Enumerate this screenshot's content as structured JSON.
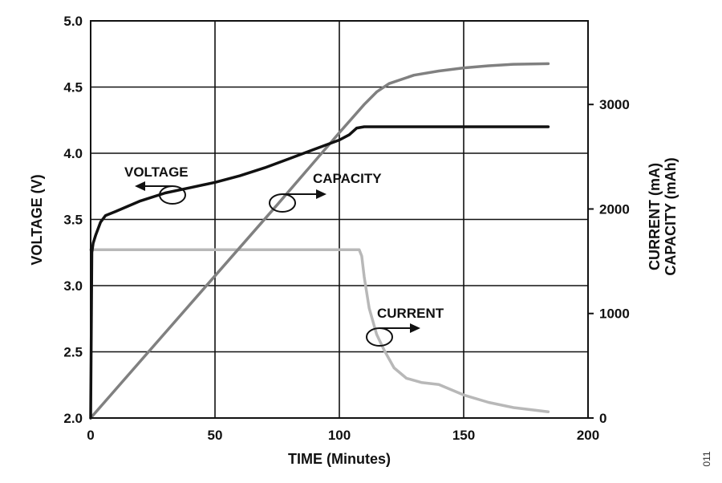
{
  "chart_data": {
    "type": "line",
    "xlabel": "TIME (Minutes)",
    "ylabel_left": "VOLTAGE (V)",
    "ylabel_right_lines": [
      "CURRENT (mA)",
      "CAPACITY (mAh)"
    ],
    "xlim": [
      0,
      200
    ],
    "ylim_left": [
      2.0,
      5.0
    ],
    "ylim_right": [
      0,
      3800
    ],
    "x_ticks": [
      "0",
      "50",
      "100",
      "150",
      "200"
    ],
    "y_left_ticks": [
      "2.0",
      "2.5",
      "3.0",
      "3.5",
      "4.0",
      "4.5",
      "5.0"
    ],
    "y_right_ticks": [
      "0",
      "1000",
      "2000",
      "3000"
    ],
    "grid": true,
    "series": [
      {
        "name": "VOLTAGE",
        "axis": "left",
        "color": "#111111",
        "x": [
          0,
          0.5,
          1,
          2,
          4,
          6,
          10,
          15,
          20,
          30,
          40,
          50,
          60,
          70,
          80,
          90,
          100,
          104,
          107,
          110,
          150,
          184
        ],
        "y": [
          2.0,
          3.25,
          3.32,
          3.38,
          3.48,
          3.53,
          3.56,
          3.6,
          3.64,
          3.7,
          3.74,
          3.78,
          3.83,
          3.89,
          3.96,
          4.03,
          4.1,
          4.14,
          4.19,
          4.2,
          4.2,
          4.2
        ]
      },
      {
        "name": "CAPACITY",
        "axis": "right",
        "color": "#808080",
        "x": [
          0,
          25,
          50,
          75,
          100,
          110,
          115,
          120,
          130,
          140,
          150,
          160,
          170,
          184
        ],
        "y": [
          0,
          680,
          1360,
          2040,
          2730,
          3000,
          3120,
          3200,
          3280,
          3320,
          3350,
          3370,
          3385,
          3390
        ]
      },
      {
        "name": "CURRENT",
        "axis": "right",
        "color": "#b8b8b8",
        "x": [
          0,
          25,
          50,
          75,
          100,
          108,
          109,
          110,
          112,
          115,
          118,
          122,
          127,
          133,
          140,
          145,
          150,
          160,
          170,
          184
        ],
        "y": [
          1610,
          1610,
          1610,
          1610,
          1610,
          1610,
          1550,
          1350,
          1050,
          800,
          650,
          480,
          380,
          340,
          320,
          270,
          220,
          150,
          100,
          60
        ]
      }
    ],
    "annotations": [
      {
        "text": "VOLTAGE",
        "points_to": "left axis"
      },
      {
        "text": "CAPACITY",
        "points_to": "right axis"
      },
      {
        "text": "CURRENT",
        "points_to": "right axis"
      }
    ],
    "figure_number": "011"
  }
}
